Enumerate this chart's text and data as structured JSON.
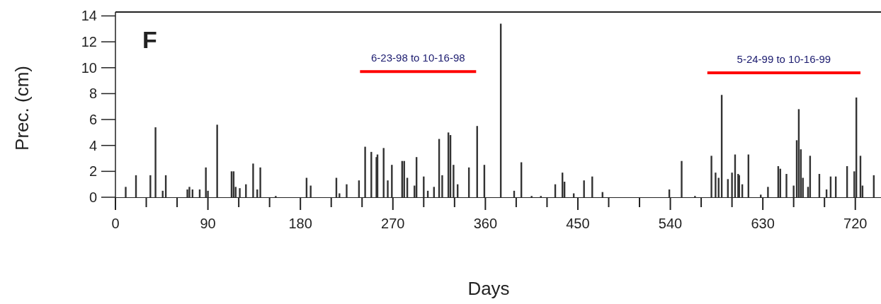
{
  "chart_data": {
    "type": "bar",
    "xlabel": "Days",
    "ylabel": "Prec. (cm)",
    "annotations": [
      "F"
    ],
    "series": [
      {
        "color": "#333333",
        "x": [
          10,
          20,
          34,
          39,
          46,
          49,
          70,
          72,
          75,
          82,
          88,
          90,
          99,
          113,
          115,
          117,
          121,
          127,
          134,
          138,
          141,
          156,
          186,
          190,
          215,
          218,
          225,
          237,
          243,
          249,
          254,
          255,
          261,
          265,
          269,
          279,
          281,
          284,
          291,
          293,
          300,
          304,
          310,
          315,
          318,
          324,
          326,
          329,
          333,
          344,
          352,
          359,
          375,
          388,
          395,
          405,
          414,
          428,
          435,
          437,
          446,
          456,
          464,
          474,
          539,
          551,
          564,
          580,
          584,
          587,
          590,
          596,
          600,
          603,
          606,
          607,
          610,
          616,
          628,
          635,
          645,
          647,
          653,
          660,
          663,
          665,
          667,
          669,
          674,
          676,
          685,
          692,
          696,
          701,
          712,
          719,
          721,
          725,
          727,
          738
        ],
        "values": [
          0.8,
          1.7,
          1.7,
          5.4,
          0.5,
          1.7,
          0.6,
          0.8,
          0.6,
          0.6,
          2.3,
          0.5,
          5.6,
          2.0,
          2.0,
          0.8,
          0.7,
          1.0,
          2.6,
          0.6,
          2.3,
          0.1,
          1.5,
          0.9,
          1.5,
          0.3,
          1.0,
          1.3,
          3.9,
          3.5,
          3.1,
          3.3,
          3.8,
          1.3,
          2.5,
          2.8,
          2.8,
          1.5,
          0.9,
          3.1,
          1.6,
          0.5,
          0.8,
          4.5,
          1.7,
          5.0,
          4.8,
          2.5,
          1.0,
          2.3,
          5.5,
          2.5,
          13.4,
          0.5,
          2.7,
          0.1,
          0.1,
          1.0,
          1.9,
          1.2,
          0.3,
          1.3,
          1.6,
          0.4,
          0.6,
          2.8,
          0.1,
          3.2,
          1.9,
          1.5,
          7.9,
          1.4,
          1.9,
          3.3,
          1.8,
          1.7,
          1.0,
          3.3,
          0.2,
          0.8,
          2.4,
          2.2,
          1.8,
          0.9,
          4.4,
          6.8,
          3.7,
          1.5,
          0.8,
          3.2,
          1.8,
          0.6,
          1.6,
          1.6,
          2.4,
          2.0,
          7.7,
          3.2,
          0.9,
          1.7
        ]
      },
      {
        "type": "line",
        "name": "6-23-98 to 10-16-98",
        "color": "#ff0000",
        "x": [
          238,
          351
        ],
        "values": [
          9.7,
          9.7
        ]
      },
      {
        "type": "line",
        "name": "5-24-99 to 10-16-99",
        "color": "#ff0000",
        "x": [
          576,
          725
        ],
        "values": [
          9.6,
          9.6
        ]
      }
    ],
    "xlim": [
      0,
      745
    ],
    "ylim": [
      0,
      14.3
    ],
    "xticks": [
      0,
      90,
      180,
      270,
      360,
      450,
      540,
      630,
      720
    ],
    "yticks": [
      0,
      2,
      4,
      6,
      8,
      10,
      12,
      14
    ],
    "grid": false,
    "legend": false
  }
}
